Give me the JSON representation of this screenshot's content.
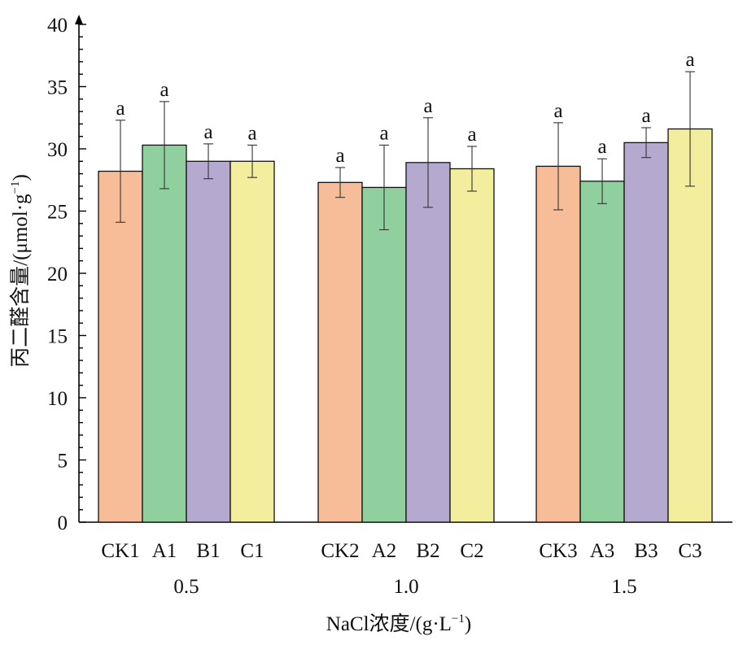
{
  "chart_data": {
    "type": "bar",
    "ylabel_cn": "丙二醛含量",
    "ylabel_unit": "/(μmol·g",
    "ylabel_sup": "−1",
    "ylabel_close": ")",
    "xlabel_prefix": "NaCl浓度/(g·L",
    "xlabel_sup": "−1",
    "xlabel_close": ")",
    "ylim": [
      0,
      40
    ],
    "yticks": [
      0,
      5,
      10,
      15,
      20,
      25,
      30,
      35,
      40
    ],
    "groups": [
      {
        "label": "0.5",
        "bars": [
          {
            "name": "CK1",
            "value": 28.2,
            "err": 4.1,
            "sig": "a",
            "color": "#f7bd98"
          },
          {
            "name": "A1",
            "value": 30.3,
            "err": 3.5,
            "sig": "a",
            "color": "#90d09e"
          },
          {
            "name": "B1",
            "value": 29.0,
            "err": 1.4,
            "sig": "a",
            "color": "#b5a9cf"
          },
          {
            "name": "C1",
            "value": 29.0,
            "err": 1.3,
            "sig": "a",
            "color": "#f2ee9e"
          }
        ]
      },
      {
        "label": "1.0",
        "bars": [
          {
            "name": "CK2",
            "value": 27.3,
            "err": 1.2,
            "sig": "a",
            "color": "#f7bd98"
          },
          {
            "name": "A2",
            "value": 26.9,
            "err": 3.4,
            "sig": "a",
            "color": "#90d09e"
          },
          {
            "name": "B2",
            "value": 28.9,
            "err": 3.6,
            "sig": "a",
            "color": "#b5a9cf"
          },
          {
            "name": "C2",
            "value": 28.4,
            "err": 1.8,
            "sig": "a",
            "color": "#f2ee9e"
          }
        ]
      },
      {
        "label": "1.5",
        "bars": [
          {
            "name": "CK3",
            "value": 28.6,
            "err": 3.5,
            "sig": "a",
            "color": "#f7bd98"
          },
          {
            "name": "A3",
            "value": 27.4,
            "err": 1.8,
            "sig": "a",
            "color": "#90d09e"
          },
          {
            "name": "B3",
            "value": 30.5,
            "err": 1.2,
            "sig": "a",
            "color": "#b5a9cf"
          },
          {
            "name": "C3",
            "value": 31.6,
            "err": 4.6,
            "sig": "a",
            "color": "#f2ee9e"
          }
        ]
      }
    ]
  }
}
